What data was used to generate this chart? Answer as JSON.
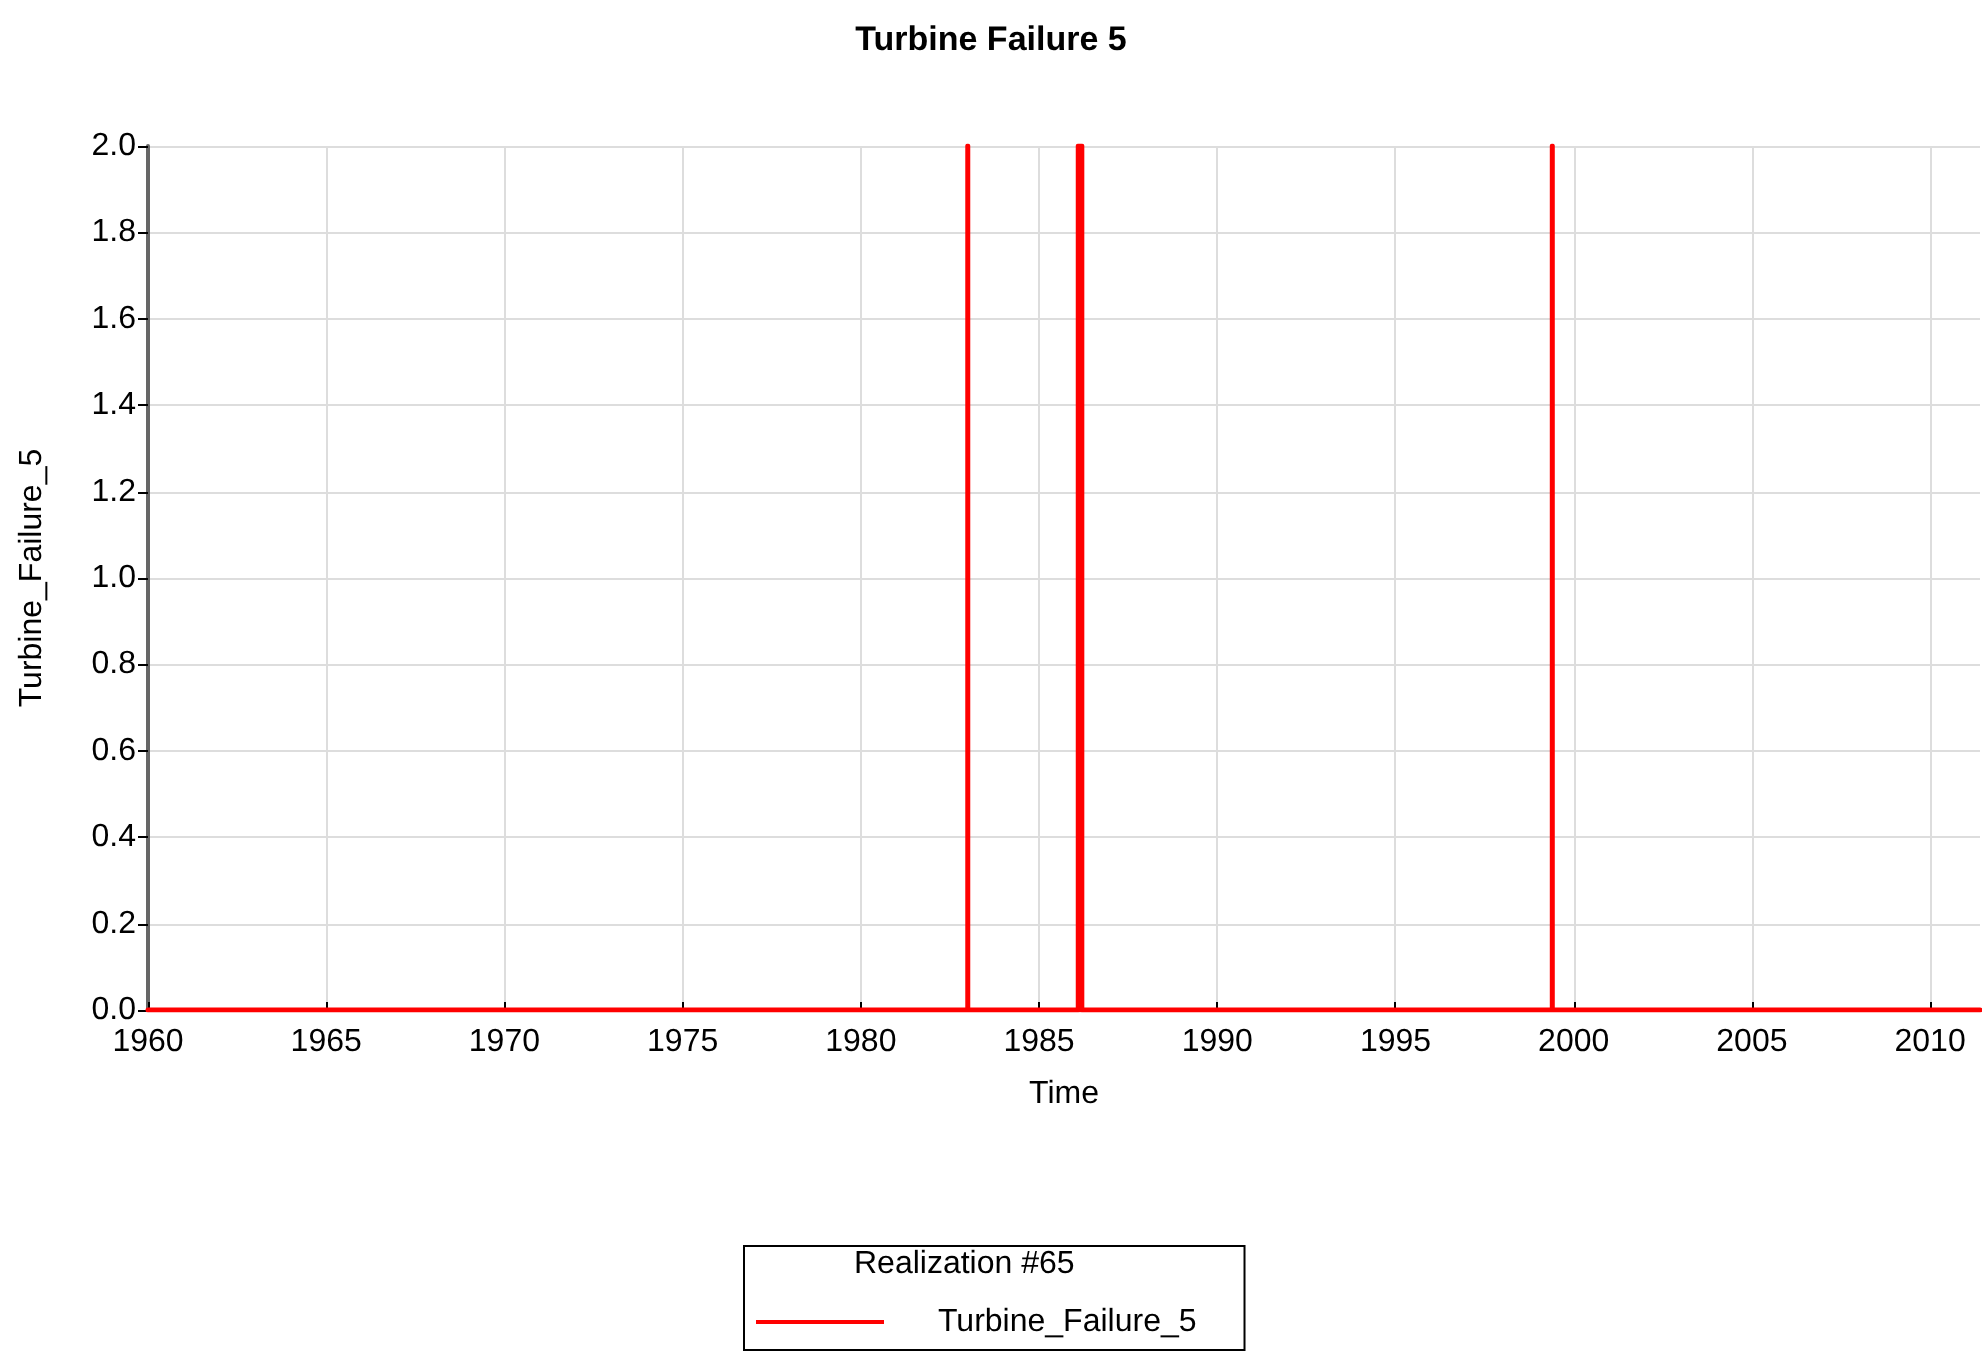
{
  "chart_data": {
    "type": "line",
    "title": "Turbine Failure 5",
    "xlabel": "Time",
    "ylabel": "Turbine_Failure_5",
    "legend_title": "Realization #65",
    "series": [
      {
        "name": "Turbine_Failure_5",
        "color": "#ff0000",
        "x": [
          1960,
          1983.0,
          1983.0,
          1983.0,
          1986.1,
          1986.1,
          1986.2,
          1986.2,
          1999.4,
          1999.4,
          1999.4,
          2011.4
        ],
        "values": [
          0,
          0,
          2,
          0,
          0,
          2,
          2,
          0,
          0,
          2,
          0,
          0
        ]
      }
    ],
    "xlim": [
      1960,
      2011.4
    ],
    "xticks": [
      1960,
      1965,
      1970,
      1975,
      1980,
      1985,
      1990,
      1995,
      2000,
      2005,
      2010
    ],
    "ylim": [
      0,
      2
    ],
    "yticks": [
      {
        "value": 0,
        "label": "0.0"
      },
      {
        "value": 0.2,
        "label": "0.2"
      },
      {
        "value": 0.4,
        "label": "0.4"
      },
      {
        "value": 0.6,
        "label": "0.6"
      },
      {
        "value": 0.8,
        "label": "0.8"
      },
      {
        "value": 1,
        "label": "1.0"
      },
      {
        "value": 1.2,
        "label": "1.2"
      },
      {
        "value": 1.4,
        "label": "1.4"
      },
      {
        "value": 1.6,
        "label": "1.6"
      },
      {
        "value": 1.8,
        "label": "1.8"
      },
      {
        "value": 2,
        "label": "2.0"
      }
    ],
    "grid": true,
    "legend": "bottom",
    "marker": "none",
    "line_style": "solid"
  }
}
